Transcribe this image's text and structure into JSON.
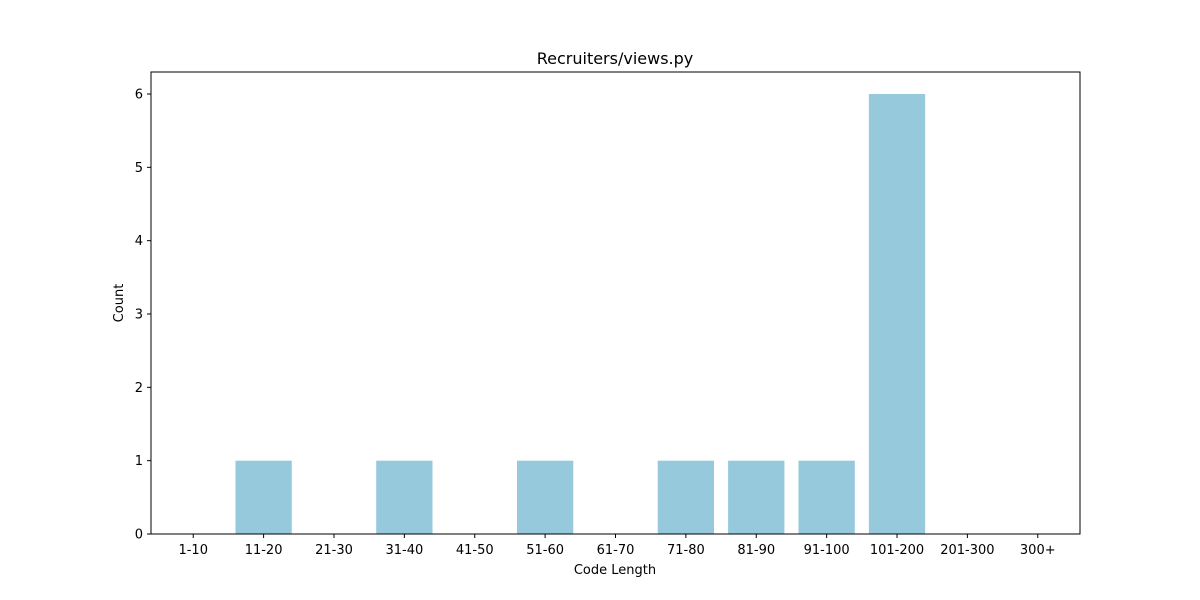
{
  "chart_data": {
    "type": "bar",
    "title": "Recruiters/views.py",
    "xlabel": "Code Length",
    "ylabel": "Count",
    "categories": [
      "1-10",
      "11-20",
      "21-30",
      "31-40",
      "41-50",
      "51-60",
      "61-70",
      "71-80",
      "81-90",
      "91-100",
      "101-200",
      "201-300",
      "300+"
    ],
    "values": [
      0,
      1,
      0,
      1,
      0,
      1,
      0,
      1,
      1,
      1,
      6,
      0,
      0
    ],
    "ylim": [
      0,
      6.3
    ],
    "yticks": [
      "0",
      "1",
      "2",
      "3",
      "4",
      "5",
      "6"
    ],
    "grid": false,
    "legend": "none",
    "bar_color": "#96c9dc"
  }
}
